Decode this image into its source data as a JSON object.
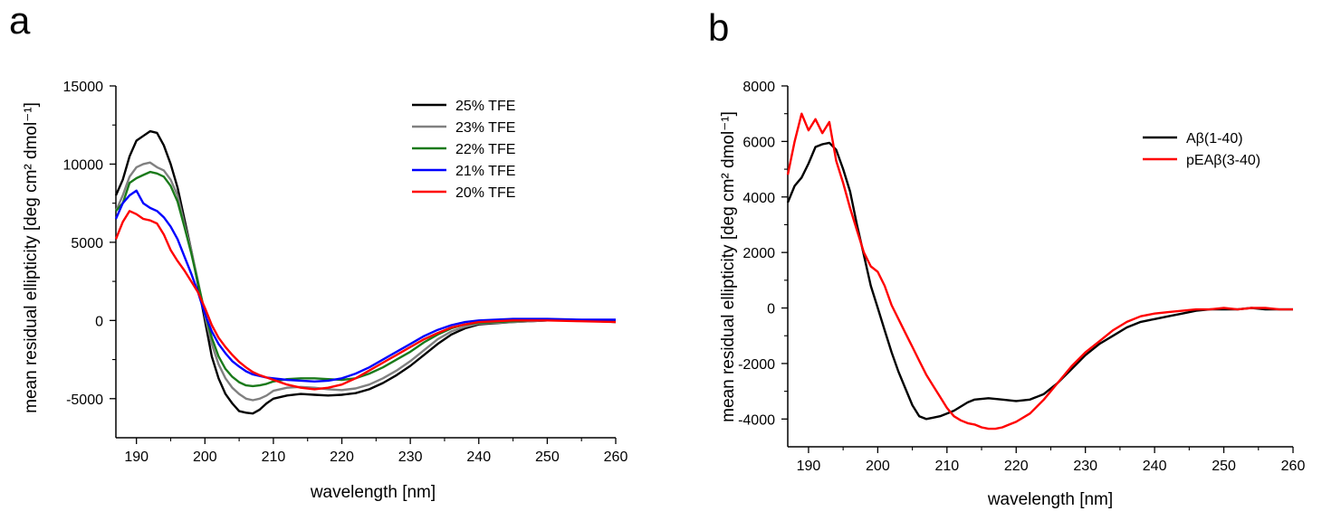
{
  "panels": [
    {
      "letter": "a"
    },
    {
      "letter": "b"
    }
  ],
  "chart_data": [
    {
      "type": "line",
      "panel": "a",
      "xlabel": "wavelength [nm]",
      "ylabel": "mean residual ellipticity [deg cm² dmol⁻¹]",
      "xlim": [
        187,
        260
      ],
      "ylim": [
        -7500,
        15000
      ],
      "xticks": [
        190,
        200,
        210,
        220,
        230,
        240,
        250,
        260
      ],
      "yticks": [
        -5000,
        0,
        5000,
        10000,
        15000
      ],
      "grid": false,
      "legend_position": "top-right",
      "series": [
        {
          "name": "25% TFE",
          "color": "#000000",
          "x": [
            187,
            188,
            189,
            190,
            191,
            192,
            193,
            194,
            195,
            196,
            197,
            198,
            199,
            200,
            201,
            202,
            203,
            204,
            205,
            206,
            207,
            208,
            209,
            210,
            212,
            214,
            216,
            218,
            220,
            222,
            224,
            226,
            228,
            230,
            232,
            234,
            236,
            238,
            240,
            245,
            250,
            255,
            260
          ],
          "y": [
            8000,
            9000,
            10500,
            11500,
            11800,
            12100,
            12000,
            11200,
            10000,
            8500,
            6500,
            4500,
            2300,
            0,
            -2300,
            -3700,
            -4700,
            -5300,
            -5800,
            -5900,
            -5950,
            -5700,
            -5300,
            -5000,
            -4800,
            -4700,
            -4750,
            -4800,
            -4750,
            -4650,
            -4400,
            -4000,
            -3500,
            -2900,
            -2200,
            -1500,
            -900,
            -500,
            -250,
            -100,
            0,
            0,
            -100
          ]
        },
        {
          "name": "23% TFE",
          "color": "#808080",
          "x": [
            187,
            188,
            189,
            190,
            191,
            192,
            193,
            194,
            195,
            196,
            197,
            198,
            199,
            200,
            201,
            202,
            203,
            204,
            205,
            206,
            207,
            208,
            209,
            210,
            212,
            214,
            216,
            218,
            220,
            222,
            224,
            226,
            228,
            230,
            232,
            234,
            236,
            238,
            240,
            245,
            250,
            255,
            260
          ],
          "y": [
            7000,
            8000,
            9200,
            9800,
            10000,
            10100,
            9800,
            9600,
            9000,
            8000,
            6200,
            4500,
            2500,
            300,
            -1500,
            -2800,
            -3700,
            -4300,
            -4700,
            -5000,
            -5100,
            -5000,
            -4800,
            -4500,
            -4300,
            -4250,
            -4300,
            -4400,
            -4450,
            -4350,
            -4100,
            -3700,
            -3200,
            -2600,
            -1900,
            -1200,
            -700,
            -400,
            -200,
            -100,
            0,
            0,
            -100
          ]
        },
        {
          "name": "22% TFE",
          "color": "#1a7a1a",
          "x": [
            187,
            188,
            189,
            190,
            191,
            192,
            193,
            194,
            195,
            196,
            197,
            198,
            199,
            200,
            201,
            202,
            203,
            204,
            205,
            206,
            207,
            208,
            209,
            210,
            212,
            214,
            216,
            218,
            220,
            222,
            224,
            226,
            228,
            230,
            232,
            234,
            236,
            238,
            240,
            245,
            250,
            255,
            260
          ],
          "y": [
            7000,
            7500,
            8800,
            9100,
            9300,
            9500,
            9400,
            9200,
            8600,
            7600,
            6000,
            4300,
            2400,
            500,
            -1100,
            -2300,
            -3100,
            -3600,
            -3950,
            -4150,
            -4200,
            -4150,
            -4050,
            -3900,
            -3750,
            -3700,
            -3700,
            -3750,
            -3800,
            -3700,
            -3400,
            -3000,
            -2500,
            -2000,
            -1400,
            -900,
            -500,
            -250,
            -150,
            -50,
            50,
            0,
            -50
          ]
        },
        {
          "name": "21% TFE",
          "color": "#0000ff",
          "x": [
            187,
            188,
            189,
            190,
            191,
            192,
            193,
            194,
            195,
            196,
            197,
            198,
            199,
            200,
            201,
            202,
            203,
            204,
            205,
            206,
            207,
            208,
            209,
            210,
            212,
            214,
            216,
            218,
            220,
            222,
            224,
            226,
            228,
            230,
            232,
            234,
            236,
            238,
            240,
            245,
            250,
            255,
            260
          ],
          "y": [
            6500,
            7500,
            8000,
            8300,
            7500,
            7200,
            7000,
            6600,
            6000,
            5200,
            4100,
            3000,
            1800,
            400,
            -700,
            -1500,
            -2100,
            -2600,
            -2950,
            -3250,
            -3450,
            -3550,
            -3650,
            -3700,
            -3800,
            -3850,
            -3900,
            -3850,
            -3700,
            -3400,
            -3000,
            -2500,
            -2000,
            -1500,
            -1000,
            -600,
            -300,
            -100,
            0,
            100,
            100,
            50,
            50
          ]
        },
        {
          "name": "20% TFE",
          "color": "#ff0000",
          "x": [
            187,
            188,
            189,
            190,
            191,
            192,
            193,
            194,
            195,
            196,
            197,
            198,
            199,
            200,
            201,
            202,
            203,
            204,
            205,
            206,
            207,
            208,
            209,
            210,
            212,
            214,
            216,
            218,
            220,
            222,
            224,
            226,
            228,
            230,
            232,
            234,
            236,
            238,
            240,
            245,
            250,
            255,
            260
          ],
          "y": [
            5200,
            6300,
            7000,
            6800,
            6500,
            6400,
            6200,
            5500,
            4500,
            3800,
            3200,
            2500,
            1800,
            800,
            -300,
            -1100,
            -1700,
            -2200,
            -2650,
            -3000,
            -3300,
            -3500,
            -3650,
            -3800,
            -4100,
            -4300,
            -4400,
            -4300,
            -4100,
            -3700,
            -3200,
            -2700,
            -2200,
            -1700,
            -1200,
            -800,
            -450,
            -250,
            -100,
            0,
            0,
            -50,
            -100
          ]
        }
      ]
    },
    {
      "type": "line",
      "panel": "b",
      "xlabel": "wavelength [nm]",
      "ylabel": "mean residual ellipticity [deg cm² dmol⁻¹]",
      "xlim": [
        187,
        260
      ],
      "ylim": [
        -5000,
        8000
      ],
      "xticks": [
        190,
        200,
        210,
        220,
        230,
        240,
        250,
        260
      ],
      "yticks": [
        -4000,
        -2000,
        0,
        2000,
        4000,
        6000,
        8000
      ],
      "grid": false,
      "legend_position": "top-right",
      "series": [
        {
          "name": "Aβ(1-40)",
          "color": "#000000",
          "x": [
            187,
            188,
            189,
            190,
            191,
            192,
            193,
            194,
            195,
            196,
            197,
            198,
            199,
            200,
            201,
            202,
            203,
            204,
            205,
            206,
            207,
            208,
            209,
            210,
            211,
            212,
            213,
            214,
            216,
            218,
            220,
            222,
            224,
            226,
            228,
            230,
            232,
            234,
            236,
            238,
            240,
            242,
            244,
            246,
            248,
            250,
            252,
            254,
            256,
            258,
            260
          ],
          "y": [
            3800,
            4400,
            4700,
            5200,
            5800,
            5900,
            5950,
            5700,
            5000,
            4200,
            3000,
            1900,
            800,
            0,
            -800,
            -1600,
            -2300,
            -2900,
            -3500,
            -3900,
            -4000,
            -3950,
            -3900,
            -3800,
            -3700,
            -3550,
            -3400,
            -3300,
            -3250,
            -3300,
            -3350,
            -3300,
            -3100,
            -2700,
            -2200,
            -1700,
            -1300,
            -1000,
            -700,
            -500,
            -400,
            -300,
            -200,
            -100,
            -50,
            -50,
            -50,
            0,
            -50,
            -50,
            -50
          ]
        },
        {
          "name": "pEAβ(3-40)",
          "color": "#ff0000",
          "x": [
            187,
            188,
            189,
            190,
            191,
            192,
            193,
            194,
            195,
            196,
            197,
            198,
            199,
            200,
            201,
            202,
            203,
            204,
            205,
            206,
            207,
            208,
            209,
            210,
            211,
            212,
            213,
            214,
            215,
            216,
            217,
            218,
            219,
            220,
            222,
            224,
            226,
            228,
            230,
            232,
            234,
            236,
            238,
            240,
            242,
            244,
            246,
            248,
            250,
            252,
            254,
            256,
            258,
            260
          ],
          "y": [
            4800,
            6000,
            7000,
            6400,
            6800,
            6300,
            6700,
            5300,
            4500,
            3600,
            2800,
            2000,
            1500,
            1300,
            800,
            100,
            -400,
            -900,
            -1400,
            -1900,
            -2400,
            -2800,
            -3200,
            -3600,
            -3900,
            -4050,
            -4150,
            -4200,
            -4300,
            -4350,
            -4350,
            -4300,
            -4200,
            -4100,
            -3800,
            -3300,
            -2700,
            -2100,
            -1600,
            -1200,
            -800,
            -500,
            -300,
            -200,
            -150,
            -100,
            -50,
            -50,
            0,
            -50,
            0,
            0,
            -50,
            -50
          ]
        }
      ]
    }
  ]
}
